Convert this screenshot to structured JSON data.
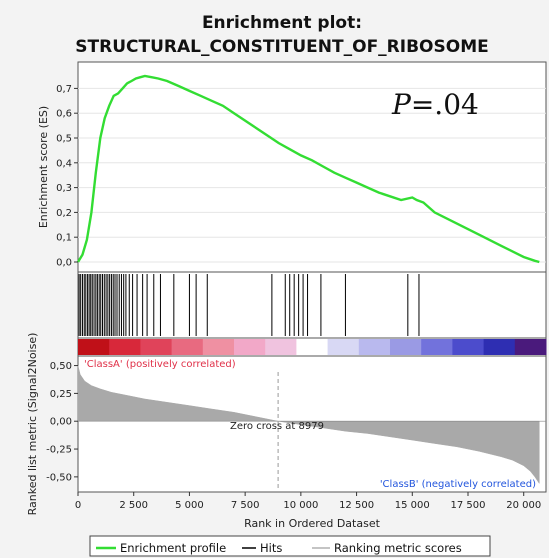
{
  "chart_data": {
    "type": "line",
    "title_line1": "Enrichment plot:",
    "title_line2": "STRUCTURAL_CONSTITUENT_OF_RIBOSOME",
    "annotation": {
      "label_italic": "P",
      "label_rest": "=.04"
    },
    "es_panel": {
      "ylabel": "Enrichment score (ES)",
      "ylim": [
        0.0,
        0.75
      ],
      "yticks": [
        0.0,
        0.1,
        0.2,
        0.3,
        0.4,
        0.5,
        0.6,
        0.7
      ],
      "ytick_labels": [
        "0,0",
        "0,1",
        "0,2",
        "0,3",
        "0,4",
        "0,5",
        "0,6",
        "0,7"
      ],
      "xlim": [
        0,
        21000
      ],
      "color": "#33dd33",
      "x": [
        0,
        200,
        400,
        600,
        800,
        1000,
        1200,
        1400,
        1600,
        1800,
        2000,
        2200,
        2400,
        2600,
        2800,
        3000,
        3300,
        3600,
        4000,
        4500,
        5000,
        5500,
        6000,
        6500,
        7000,
        7500,
        8000,
        8500,
        9000,
        9500,
        10000,
        10500,
        11000,
        11500,
        12000,
        12500,
        13000,
        13500,
        14000,
        14500,
        15000,
        15200,
        15500,
        16000,
        17000,
        18000,
        19000,
        20000,
        20500,
        20700
      ],
      "es": [
        0.0,
        0.03,
        0.09,
        0.2,
        0.36,
        0.5,
        0.58,
        0.63,
        0.67,
        0.68,
        0.7,
        0.72,
        0.73,
        0.74,
        0.745,
        0.75,
        0.745,
        0.74,
        0.73,
        0.71,
        0.69,
        0.67,
        0.65,
        0.63,
        0.6,
        0.57,
        0.54,
        0.51,
        0.48,
        0.455,
        0.43,
        0.41,
        0.385,
        0.36,
        0.34,
        0.32,
        0.3,
        0.28,
        0.265,
        0.25,
        0.26,
        0.25,
        0.24,
        0.2,
        0.155,
        0.11,
        0.065,
        0.02,
        0.005,
        0.0
      ]
    },
    "hits": [
      50,
      120,
      200,
      280,
      350,
      430,
      500,
      570,
      640,
      720,
      800,
      870,
      950,
      1020,
      1100,
      1180,
      1260,
      1340,
      1420,
      1500,
      1580,
      1660,
      1750,
      1850,
      1950,
      2050,
      2150,
      2300,
      2450,
      2650,
      2900,
      3100,
      3400,
      3700,
      4300,
      5000,
      5300,
      5800,
      8700,
      9300,
      9500,
      9700,
      9900,
      10100,
      10300,
      10900,
      12000,
      14800,
      15300
    ],
    "heatmap_colors": [
      "#c01018",
      "#d8283a",
      "#e0435a",
      "#e86a80",
      "#ef90a2",
      "#f2a8c8",
      "#f0c3df",
      "#ffffff",
      "#d8d8f4",
      "#b9b9ee",
      "#9a9ae4",
      "#7272dc",
      "#4c4ccc",
      "#2e2eb2",
      "#4a1a7c"
    ],
    "rank_panel": {
      "ylabel": "Ranked list metric (Signal2Noise)",
      "xlabel": "Rank in Ordered Dataset",
      "ylim": [
        -0.6,
        0.55
      ],
      "yticks": [
        -0.5,
        -0.25,
        0.0,
        0.25,
        0.5
      ],
      "ytick_labels": [
        "-0,50",
        "-0,25",
        "0,00",
        "0,25",
        "0,50"
      ],
      "xlim": [
        0,
        21000
      ],
      "xticks": [
        0,
        2500,
        5000,
        7500,
        10000,
        12500,
        15000,
        17500,
        20000
      ],
      "xtick_labels": [
        "0",
        "2 500",
        "5 000",
        "7 500",
        "10 000",
        "12 500",
        "15 000",
        "17 500",
        "20 000"
      ],
      "class_a_label": "'ClassA' (positively correlated)",
      "class_b_label": "'ClassB' (negatively correlated)",
      "class_a_color": "#e03048",
      "class_b_color": "#2255dd",
      "zero_cross_label": "Zero cross at 8979",
      "zero_cross_x": 8979,
      "x": [
        0,
        100,
        300,
        600,
        1000,
        1500,
        2000,
        3000,
        4000,
        5000,
        6000,
        7000,
        8000,
        8979,
        10000,
        11000,
        12000,
        13000,
        14000,
        15000,
        16000,
        17000,
        18000,
        19000,
        19500,
        20000,
        20300,
        20500,
        20700
      ],
      "metric": [
        0.5,
        0.42,
        0.36,
        0.32,
        0.29,
        0.26,
        0.24,
        0.2,
        0.17,
        0.14,
        0.11,
        0.08,
        0.04,
        0.0,
        -0.03,
        -0.06,
        -0.09,
        -0.11,
        -0.14,
        -0.17,
        -0.2,
        -0.23,
        -0.27,
        -0.32,
        -0.35,
        -0.4,
        -0.45,
        -0.5,
        -0.56
      ]
    },
    "legend": [
      "Enrichment profile",
      "Hits",
      "Ranking metric scores"
    ]
  }
}
